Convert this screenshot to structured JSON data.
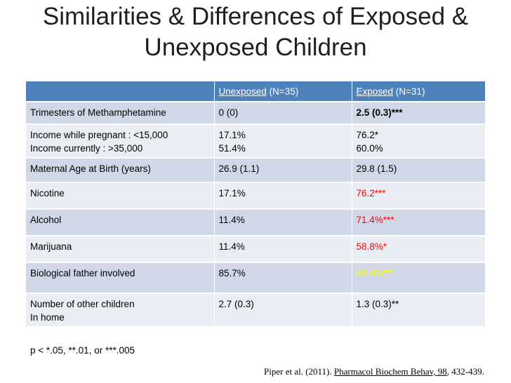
{
  "slide": {
    "title_line1": "Similarities & Differences of Exposed &",
    "title_line2": "Unexposed Children"
  },
  "table": {
    "headers": {
      "col1": "",
      "unexposed_word": "Unexposed",
      "unexposed_n": " (N=35)",
      "exposed_word": "Exposed",
      "exposed_n": " (N=31)"
    },
    "rows": [
      {
        "label": "Trimesters of Methamphetamine",
        "unexposed": "0 (0)",
        "exposed": "2.5 (0.3)***"
      },
      {
        "label": "Income while pregnant : <15,000",
        "label2": "Income currently : >35,000",
        "unexposed": "17.1%",
        "unexposed2": "51.4%",
        "exposed": "76.2*",
        "exposed2": "60.0%"
      },
      {
        "label": "Maternal Age at Birth (years)",
        "unexposed": "26.9 (1.1)",
        "exposed": "29.8 (1.5)"
      },
      {
        "label": "Nicotine",
        "unexposed": "17.1%",
        "exposed": "76.2***"
      },
      {
        "label": "Alcohol",
        "unexposed": "11.4%",
        "exposed": "71.4%***"
      },
      {
        "label": "Marijuana",
        "unexposed": "11.4%",
        "exposed": "58.8%*"
      },
      {
        "label": "Biological father involved",
        "unexposed": "85.7%",
        "exposed": "44.8%***"
      },
      {
        "label": "Number of other children",
        "label2": "In home",
        "unexposed": "2.7 (0.3)",
        "exposed": "1.3 (0.3)**"
      }
    ]
  },
  "footnote": "p < *.05, **.01, or ***.005",
  "citation": {
    "authors": "Piper et al. (2011). ",
    "journal": "Pharmacol Biochem Behav, 98",
    "pages": ", 432-439."
  },
  "colors": {
    "header_bg": "#4f81bd",
    "row_dark": "#d0d8e8",
    "row_light": "#e9edf4",
    "highlight_red": "#ff0000",
    "highlight_yellow": "#ffff00"
  }
}
